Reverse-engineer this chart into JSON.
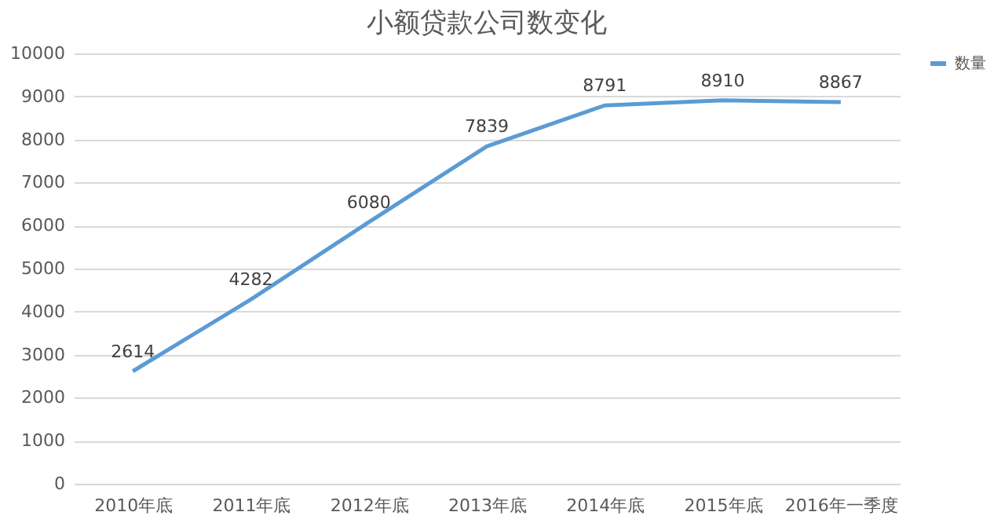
{
  "chart_data": {
    "type": "line",
    "title": "小额贷款公司数变化",
    "categories": [
      "2010年底",
      "2011年底",
      "2012年底",
      "2013年底",
      "2014年底",
      "2015年底",
      "2016年一季度"
    ],
    "series": [
      {
        "name": "数量",
        "color": "#5b9bd5",
        "values": [
          2614,
          4282,
          6080,
          7839,
          8791,
          8910,
          8867
        ]
      }
    ],
    "ylim": [
      0,
      10000
    ],
    "yticks": [
      0,
      1000,
      2000,
      3000,
      4000,
      5000,
      6000,
      7000,
      8000,
      9000,
      10000
    ],
    "grid": "y",
    "legend": "right",
    "data_labels": true,
    "marker": "none",
    "line_style": "solid"
  }
}
